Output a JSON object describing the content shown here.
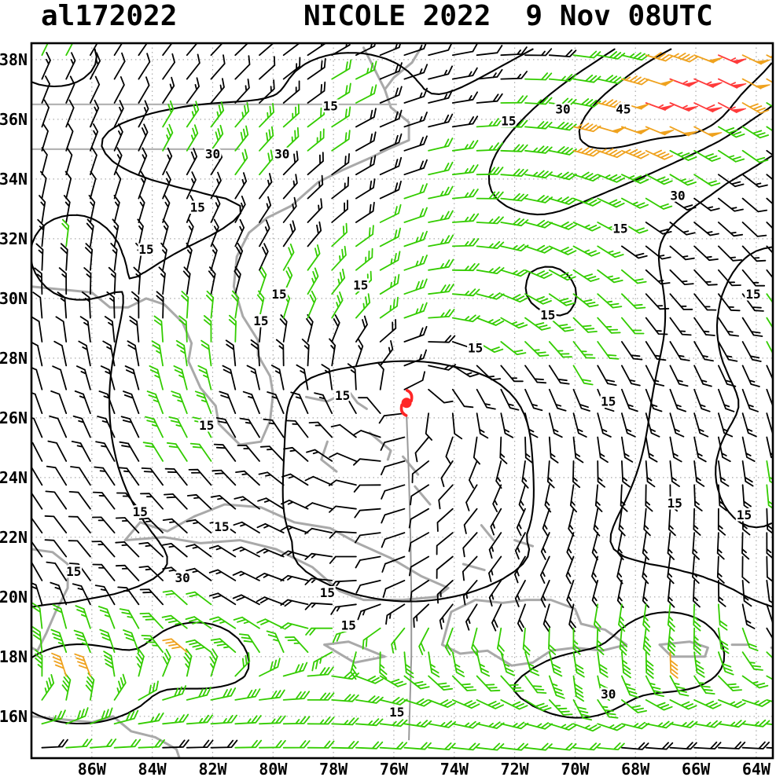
{
  "header": {
    "storm_id": "al172022",
    "storm_name": "NICOLE 2022",
    "valid_time": "9 Nov 08UTC"
  },
  "axes": {
    "lat_ticks": [
      {
        "label": "38N",
        "value": 38
      },
      {
        "label": "36N",
        "value": 36
      },
      {
        "label": "34N",
        "value": 34
      },
      {
        "label": "32N",
        "value": 32
      },
      {
        "label": "30N",
        "value": 30
      },
      {
        "label": "28N",
        "value": 28
      },
      {
        "label": "26N",
        "value": 26
      },
      {
        "label": "24N",
        "value": 24
      },
      {
        "label": "22N",
        "value": 22
      },
      {
        "label": "20N",
        "value": 20
      },
      {
        "label": "18N",
        "value": 18
      },
      {
        "label": "16N",
        "value": 16
      }
    ],
    "lon_ticks": [
      {
        "label": "86W",
        "value": -86
      },
      {
        "label": "84W",
        "value": -84
      },
      {
        "label": "82W",
        "value": -82
      },
      {
        "label": "80W",
        "value": -80
      },
      {
        "label": "78W",
        "value": -78
      },
      {
        "label": "76W",
        "value": -76
      },
      {
        "label": "74W",
        "value": -74
      },
      {
        "label": "72W",
        "value": -72
      },
      {
        "label": "70W",
        "value": -70
      },
      {
        "label": "68W",
        "value": -68
      },
      {
        "label": "66W",
        "value": -66
      },
      {
        "label": "64W",
        "value": -64
      }
    ]
  },
  "chart_data": {
    "type": "map-windbarbs",
    "title": "NICOLE 2022 9 Nov 08UTC",
    "title_left": "al172022",
    "storm": {
      "atcf_id": "al172022",
      "name": "NICOLE",
      "season": "2022",
      "center_lon_w": 75.58,
      "center_lat_n": 26.5,
      "symbol_color": "#ff2626"
    },
    "map_extent": {
      "lon_w_min": 63.45,
      "lon_w_max": 88.0,
      "lat_n_min": 14.6,
      "lat_n_max": 38.55
    },
    "grid_interval_deg": 2,
    "isotach_levels_kt": [
      15,
      30,
      45
    ],
    "barb_grid_spacing_deg": 0.8,
    "wind_speed_colors": [
      {
        "range_kt": "<20",
        "hex": "#000000"
      },
      {
        "range_kt": "20-40",
        "hex": "#33cc00"
      },
      {
        "range_kt": "40-52",
        "hex": "#efa21e"
      },
      {
        "range_kt": ">52",
        "hex": "#ff3b3b"
      }
    ],
    "contour_labels": [
      {
        "v": 15,
        "lon": -78.1,
        "lat": 36.3
      },
      {
        "v": 30,
        "lon": -82.0,
        "lat": 34.7
      },
      {
        "v": 30,
        "lon": -79.7,
        "lat": 34.7
      },
      {
        "v": 15,
        "lon": -72.2,
        "lat": 35.8
      },
      {
        "v": 30,
        "lon": -70.4,
        "lat": 36.2
      },
      {
        "v": 45,
        "lon": -68.4,
        "lat": 36.2
      },
      {
        "v": 30,
        "lon": -66.6,
        "lat": 33.3
      },
      {
        "v": 15,
        "lon": -82.5,
        "lat": 32.9
      },
      {
        "v": 15,
        "lon": -84.2,
        "lat": 31.5
      },
      {
        "v": 15,
        "lon": -79.8,
        "lat": 30.0
      },
      {
        "v": 15,
        "lon": -77.1,
        "lat": 30.3
      },
      {
        "v": 15,
        "lon": -80.4,
        "lat": 29.1
      },
      {
        "v": 15,
        "lon": -68.5,
        "lat": 32.2
      },
      {
        "v": 15,
        "lon": -64.1,
        "lat": 30.0
      },
      {
        "v": 15,
        "lon": -70.9,
        "lat": 29.3
      },
      {
        "v": 15,
        "lon": -73.3,
        "lat": 28.2
      },
      {
        "v": 15,
        "lon": -77.7,
        "lat": 26.6
      },
      {
        "v": 15,
        "lon": -68.9,
        "lat": 26.4
      },
      {
        "v": 15,
        "lon": -82.2,
        "lat": 25.6
      },
      {
        "v": 15,
        "lon": -84.4,
        "lat": 22.7
      },
      {
        "v": 15,
        "lon": -86.6,
        "lat": 20.7
      },
      {
        "v": 15,
        "lon": -81.7,
        "lat": 22.2
      },
      {
        "v": 30,
        "lon": -83.0,
        "lat": 20.5
      },
      {
        "v": 15,
        "lon": -78.2,
        "lat": 20.0
      },
      {
        "v": 15,
        "lon": -77.5,
        "lat": 18.9
      },
      {
        "v": 15,
        "lon": -64.4,
        "lat": 22.6
      },
      {
        "v": 15,
        "lon": -66.7,
        "lat": 23.0
      },
      {
        "v": 30,
        "lon": -68.9,
        "lat": 16.6
      },
      {
        "v": 15,
        "lon": -75.9,
        "lat": 16.0
      }
    ],
    "wind_field_model": {
      "radial_profile_deg_kt": [
        [
          0,
          9
        ],
        [
          2,
          12.5
        ],
        [
          4,
          15
        ],
        [
          6,
          17
        ],
        [
          8,
          15
        ],
        [
          10,
          13
        ],
        [
          13,
          10
        ],
        [
          20,
          8
        ]
      ],
      "inflow_deg": 18,
      "trade_easterlies": {
        "amp_kt": 20,
        "center_lat": 16.0,
        "sigma_lat": 3.2
      },
      "gaussians": [
        {
          "name": "ne-jet",
          "amp": 46,
          "lon": -66.2,
          "lat": 37.3,
          "slon": 7.0,
          "slat": 2.4,
          "theta": 28
        },
        {
          "name": "jet-red-core",
          "amp": 13,
          "lon": -65.9,
          "lat": 36.2,
          "slon": 1.0,
          "slat": 0.7,
          "theta": 28
        },
        {
          "name": "north-band",
          "amp": 12,
          "lon": -75.5,
          "lat": 29.8,
          "slon": 4.5,
          "slat": 1.7
        },
        {
          "name": "west-band",
          "amp": 10,
          "lon": -83.2,
          "lat": 26.5,
          "slon": 1.7,
          "slat": 3.2
        },
        {
          "name": "northeast-band",
          "amp": 11,
          "lon": -70.3,
          "lat": 30.2,
          "slon": 2.0,
          "slat": 2.2
        },
        {
          "name": "northwest-band",
          "amp": 17,
          "lon": -81.5,
          "lat": 35.2,
          "slon": 3.8,
          "slat": 1.1
        },
        {
          "name": "top-center-streak",
          "amp": 11,
          "lon": -77.5,
          "lat": 37.2,
          "slon": 1.8,
          "slat": 1.0
        },
        {
          "name": "topleft-corner",
          "amp": 13,
          "lon": -87.3,
          "lat": 38.1,
          "slon": 1.6,
          "slat": 1.1
        },
        {
          "name": "left-pocket",
          "amp": 10,
          "lon": -86.8,
          "lat": 31.5,
          "slon": 1.5,
          "slat": 1.5
        },
        {
          "name": "east-edge",
          "amp": 12,
          "lon": -63.3,
          "lat": 29.3,
          "slon": 1.6,
          "slat": 2.6
        },
        {
          "name": "east-edge-south",
          "amp": 10,
          "lon": -63.8,
          "lat": 24.0,
          "slon": 1.3,
          "slat": 1.8
        },
        {
          "name": "south-band",
          "amp": 17,
          "lon": -76.0,
          "lat": 16.8,
          "slon": 40.0,
          "slat": 2.6
        },
        {
          "name": "south-patch-west",
          "amp": 18,
          "lon": -86.5,
          "lat": 17.2,
          "slon": 2.0,
          "slat": 1.5
        },
        {
          "name": "south-patch-cuba",
          "amp": 17,
          "lon": -82.6,
          "lat": 18.4,
          "slon": 1.5,
          "slat": 1.0
        },
        {
          "name": "south-patch-east",
          "amp": 19,
          "lon": -66.8,
          "lat": 18.6,
          "slon": 2.0,
          "slat": 1.4
        },
        {
          "name": "south-patch-mid",
          "amp": 12,
          "lon": -69.8,
          "lat": 17.0,
          "slon": 1.3,
          "slat": 1.0
        },
        {
          "name": "south-moat",
          "amp": -8,
          "lon": -75.5,
          "lat": 21.5,
          "slon": 3.5,
          "slat": 2.8
        }
      ]
    },
    "geography": {
      "coastlines": [
        [
          [
            -88,
            30.4
          ],
          [
            -87,
            30.3
          ],
          [
            -86,
            30.2
          ],
          [
            -85.4,
            29.7
          ],
          [
            -84.8,
            29.7
          ],
          [
            -84.2,
            30
          ],
          [
            -83.6,
            29.8
          ],
          [
            -83,
            29.2
          ],
          [
            -82.7,
            28.5
          ],
          [
            -82.8,
            27.9
          ],
          [
            -82.4,
            27
          ],
          [
            -81.9,
            26.4
          ],
          [
            -81.8,
            25.8
          ],
          [
            -81.1,
            25.1
          ],
          [
            -80.4,
            25.2
          ],
          [
            -80.1,
            25.9
          ],
          [
            -80,
            26.8
          ],
          [
            -80.1,
            27.4
          ],
          [
            -80.5,
            28.1
          ],
          [
            -80.5,
            28.6
          ],
          [
            -81,
            29.4
          ],
          [
            -81.3,
            30.4
          ],
          [
            -81.2,
            31.4
          ],
          [
            -80.8,
            32.2
          ],
          [
            -80.2,
            32.7
          ],
          [
            -79.4,
            33.1
          ],
          [
            -78.5,
            33.9
          ],
          [
            -77.7,
            34.3
          ],
          [
            -76.8,
            34.7
          ],
          [
            -76.2,
            35
          ],
          [
            -75.5,
            35.3
          ],
          [
            -75.5,
            35.9
          ],
          [
            -76.1,
            36.4
          ],
          [
            -76.3,
            37
          ],
          [
            -76,
            37.4
          ],
          [
            -75.4,
            37.9
          ],
          [
            -75.1,
            38.4
          ]
        ],
        [
          [
            -76.3,
            37
          ],
          [
            -76.6,
            37.6
          ],
          [
            -77,
            38.4
          ]
        ],
        [
          [
            -84.9,
            21.9
          ],
          [
            -84.4,
            22.5
          ],
          [
            -83.5,
            22.2
          ],
          [
            -82.6,
            22.7
          ],
          [
            -81.6,
            23.1
          ],
          [
            -80.4,
            23
          ],
          [
            -79.3,
            22.5
          ],
          [
            -78.1,
            22.3
          ],
          [
            -77.2,
            21.8
          ],
          [
            -76.1,
            21.3
          ],
          [
            -75.1,
            20.7
          ],
          [
            -74.2,
            20.3
          ],
          [
            -74.6,
            20
          ],
          [
            -75.7,
            19.9
          ],
          [
            -77,
            19.9
          ],
          [
            -77.8,
            20.2
          ],
          [
            -78.7,
            21
          ],
          [
            -79.9,
            21.6
          ],
          [
            -81.1,
            21.9
          ],
          [
            -82.4,
            21.8
          ],
          [
            -83.6,
            22
          ],
          [
            -84.9,
            21.9
          ]
        ],
        [
          [
            -74.4,
            18.4
          ],
          [
            -74.1,
            19.5
          ],
          [
            -73.3,
            19.9
          ],
          [
            -72.4,
            19.8
          ],
          [
            -71.6,
            19.9
          ],
          [
            -70.8,
            19.9
          ],
          [
            -70,
            19.6
          ],
          [
            -69.8,
            19.1
          ],
          [
            -69,
            18.9
          ],
          [
            -68.3,
            18.4
          ],
          [
            -69.1,
            18.2
          ],
          [
            -70,
            18.3
          ],
          [
            -70.8,
            18.2
          ],
          [
            -71.4,
            17.8
          ],
          [
            -72.1,
            17.7
          ],
          [
            -72.9,
            18.2
          ],
          [
            -73.8,
            18.1
          ],
          [
            -74.4,
            18.4
          ]
        ],
        [
          [
            -78.3,
            18.4
          ],
          [
            -77.5,
            18.5
          ],
          [
            -76.3,
            18
          ],
          [
            -77.3,
            17.8
          ],
          [
            -78.3,
            18.4
          ]
        ],
        [
          [
            -67.2,
            18.4
          ],
          [
            -66.2,
            18.5
          ],
          [
            -65.6,
            18.3
          ],
          [
            -65.7,
            18
          ],
          [
            -66.8,
            18
          ],
          [
            -67.2,
            18.4
          ]
        ],
        [
          [
            -88,
            21.6
          ],
          [
            -87.3,
            21.5
          ],
          [
            -86.8,
            21.1
          ],
          [
            -86.8,
            20.3
          ],
          [
            -87.2,
            19.5
          ],
          [
            -87.5,
            18.8
          ],
          [
            -87.8,
            18.2
          ],
          [
            -88,
            18.3
          ]
        ],
        [
          [
            -88,
            16
          ],
          [
            -87,
            15.9
          ],
          [
            -86,
            15.8
          ],
          [
            -85.3,
            16
          ],
          [
            -84.7,
            15.5
          ],
          [
            -83.9,
            15.3
          ],
          [
            -83.2,
            14.9
          ],
          [
            -83.1,
            14.6
          ]
        ],
        [
          [
            -78.9,
            26.7
          ],
          [
            -78.2,
            26.55
          ],
          [
            -77.9,
            26.7
          ]
        ],
        [
          [
            -77.5,
            26.9
          ],
          [
            -77.2,
            26.5
          ],
          [
            -76.9,
            26.3
          ]
        ],
        [
          [
            -78.2,
            25.2
          ],
          [
            -78.4,
            24.6
          ],
          [
            -77.9,
            24.2
          ]
        ],
        [
          [
            -76.8,
            25.5
          ],
          [
            -76.1,
            24.9
          ],
          [
            -76.2,
            24.6
          ]
        ],
        [
          [
            -75.7,
            24.7
          ],
          [
            -75.2,
            24.1
          ]
        ],
        [
          [
            -75.3,
            23.7
          ],
          [
            -74.8,
            23.1
          ]
        ],
        [
          [
            -73.1,
            22.4
          ],
          [
            -72.7,
            21.9
          ]
        ],
        [
          [
            -72,
            21.9
          ],
          [
            -71.4,
            21.7
          ]
        ],
        [
          [
            -73.7,
            21.1
          ],
          [
            -73,
            20.9
          ]
        ],
        [
          [
            -64.8,
            18.4
          ],
          [
            -64.3,
            18.4
          ]
        ],
        [
          [
            -63.5,
            18.3
          ],
          [
            -63.1,
            18.1
          ]
        ]
      ],
      "state_borders": [
        [
          [
            -88,
            36.5
          ],
          [
            -75.9,
            36.5
          ]
        ],
        [
          [
            -88,
            35
          ],
          [
            -81.1,
            35
          ]
        ]
      ]
    },
    "track_line": [
      [
        -75.58,
        26.1
      ],
      [
        -75.5,
        24
      ],
      [
        -75.45,
        22
      ],
      [
        -75.42,
        20
      ],
      [
        -75.42,
        18
      ],
      [
        -75.48,
        16
      ],
      [
        -75.5,
        15.2
      ]
    ]
  }
}
